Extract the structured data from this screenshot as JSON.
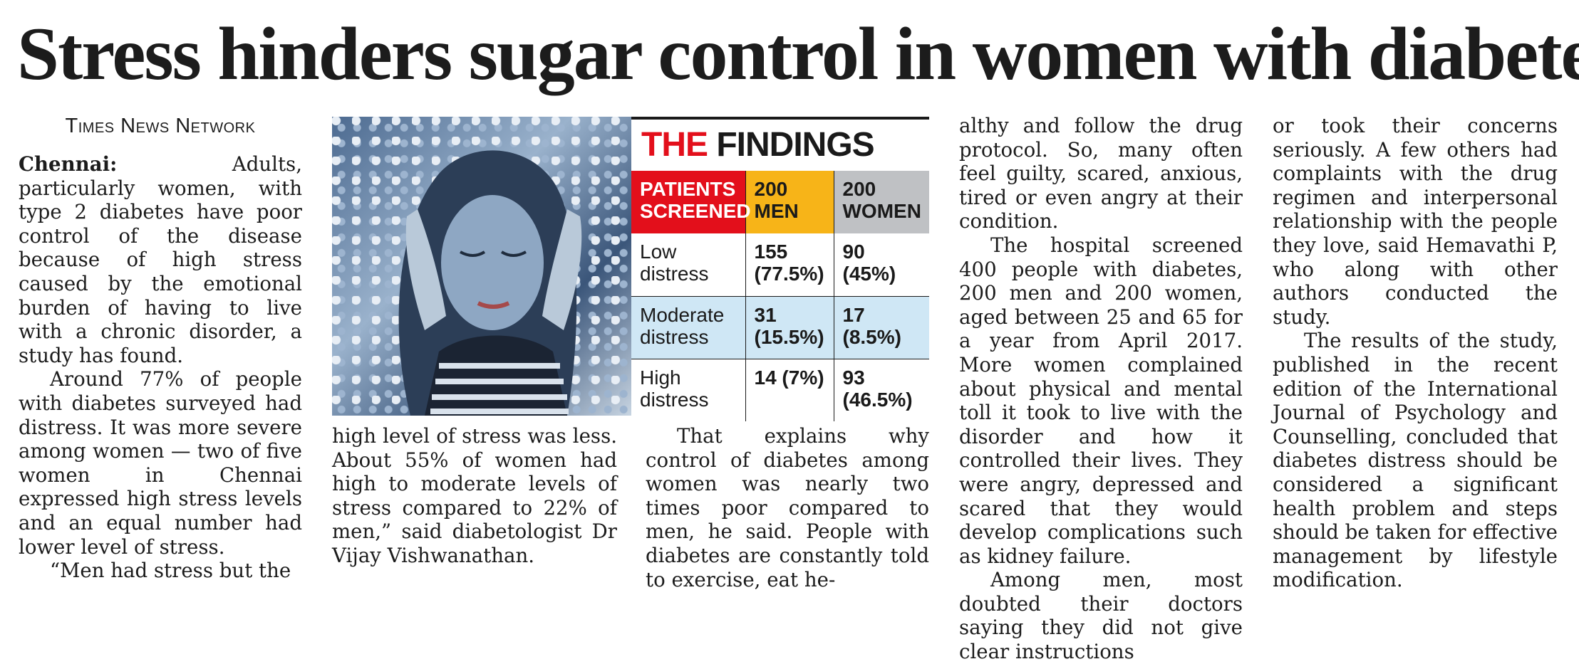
{
  "headline": "Stress hinders sugar control in women with diabetes",
  "byline": "Times News Network",
  "column1": {
    "dateline": "Chennai:",
    "p1": "Adults, particularly women, with type 2 diabetes have poor control of the disease because of high stress caused by the emotional burden of having to live with a chronic disorder, a study has found.",
    "p2": "Around 77% of people with diabetes surveyed had distress. It was more severe among women — two of five women in Chennai expressed high stress levels and an equal number had lower level of stress.",
    "p3": "“Men had stress but the"
  },
  "column2": {
    "p1": "high level of stress was less. About 55% of women had high to moderate levels of stress compared to 22% of men,” said diabetologist Dr Vijay Vishwanathan."
  },
  "column3": {
    "p1": "That explains why control of diabetes among women was nearly two times poor compared to men, he said. People with diabetes are constantly told to exercise, eat he-"
  },
  "column4": {
    "p1": "althy and follow the drug protocol. So, many often feel guilty, scared, anxious, tired or even angry at their condition.",
    "p2": "The hospital screened 400 people with diabetes, 200 men and 200 women, aged between 25 and 65 for a year from April 2017. More women complained about physical and mental toll it took to live with the disorder and how it controlled their lives. They were angry, depressed and scared that they would develop complications such as kidney failure.",
    "p3": "Among men, most doubted their doctors saying they did not give clear instructions"
  },
  "column5": {
    "p1": "or took their concerns seriously. A few others had complaints with the drug regimen and interpersonal relationship with the people they love, said Hemavathi P, who along with other authors conducted the study.",
    "p2": "The results of the study, published in the recent edition of the International Journal of Psychology and Counselling, concluded that diabetes distress should be considered a significant health problem and steps should be taken for effective management by lifestyle modification."
  },
  "findings": {
    "title_red": "THE",
    "title_black": "FINDINGS",
    "header": {
      "c0": "PATIENTS SCREENED",
      "c1": "200 MEN",
      "c2": "200 WOMEN"
    },
    "rows": [
      {
        "label": "Low distress",
        "men": "155 (77.5%)",
        "women": "90 (45%)"
      },
      {
        "label": "Moderate distress",
        "men": "31 (15.5%)",
        "women": "17 (8.5%)"
      },
      {
        "label": "High distress",
        "men": "14 (7%)",
        "women": "93 (46.5%)"
      }
    ],
    "colors": {
      "red": "#e30f1b",
      "orange": "#f7b418",
      "grey": "#bfc1c4",
      "blue": "#cfe7f5"
    }
  },
  "photo": {
    "icon": "stressed-woman-photo"
  }
}
